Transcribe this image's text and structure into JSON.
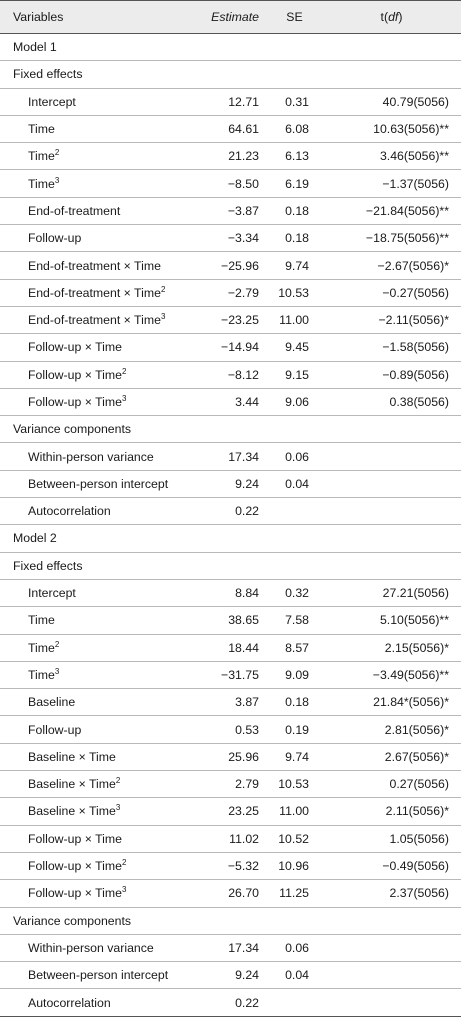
{
  "header": {
    "variables": "Variables",
    "estimate": "Estimate",
    "se": "SE",
    "t_prefix": "t(",
    "t_df": "df",
    "t_suffix": ")"
  },
  "model1": {
    "title": "Model 1",
    "fixed_title": "Fixed effects",
    "fixed": [
      {
        "label": "Intercept",
        "sup": "",
        "estimate": "12.71",
        "se": "0.31",
        "t": "40.79(5056)"
      },
      {
        "label": "Time",
        "sup": "",
        "estimate": "64.61",
        "se": "6.08",
        "t": "10.63(5056)**"
      },
      {
        "label": "Time",
        "sup": "2",
        "estimate": "21.23",
        "se": "6.13",
        "t": "3.46(5056)**"
      },
      {
        "label": "Time",
        "sup": "3",
        "estimate": "−8.50",
        "se": "6.19",
        "t": "−1.37(5056)"
      },
      {
        "label": "End-of-treatment",
        "sup": "",
        "estimate": "−3.87",
        "se": "0.18",
        "t": "−21.84(5056)**"
      },
      {
        "label": "Follow-up",
        "sup": "",
        "estimate": "−3.34",
        "se": "0.18",
        "t": "−18.75(5056)**"
      },
      {
        "label": "End-of-treatment × Time",
        "sup": "",
        "estimate": "−25.96",
        "se": "9.74",
        "t": "−2.67(5056)*"
      },
      {
        "label": "End-of-treatment × Time",
        "sup": "2",
        "estimate": "−2.79",
        "se": "10.53",
        "t": "−0.27(5056)"
      },
      {
        "label": "End-of-treatment × Time",
        "sup": "3",
        "estimate": "−23.25",
        "se": "11.00",
        "t": "−2.11(5056)*"
      },
      {
        "label": "Follow-up × Time",
        "sup": "",
        "estimate": "−14.94",
        "se": "9.45",
        "t": "−1.58(5056)"
      },
      {
        "label": "Follow-up × Time",
        "sup": "2",
        "estimate": "−8.12",
        "se": "9.15",
        "t": "−0.89(5056)"
      },
      {
        "label": "Follow-up × Time",
        "sup": "3",
        "estimate": "3.44",
        "se": "9.06",
        "t": "0.38(5056)"
      }
    ],
    "variance_title": "Variance components",
    "variance": [
      {
        "label": "Within-person variance",
        "estimate": "17.34",
        "se": "0.06"
      },
      {
        "label": "Between-person intercept",
        "estimate": "9.24",
        "se": "0.04"
      },
      {
        "label": "Autocorrelation",
        "estimate": "0.22",
        "se": ""
      }
    ]
  },
  "model2": {
    "title": "Model 2",
    "fixed_title": "Fixed effects",
    "fixed": [
      {
        "label": "Intercept",
        "sup": "",
        "estimate": "8.84",
        "se": "0.32",
        "t": "27.21(5056)"
      },
      {
        "label": "Time",
        "sup": "",
        "estimate": "38.65",
        "se": "7.58",
        "t": "5.10(5056)**"
      },
      {
        "label": "Time",
        "sup": "2",
        "estimate": "18.44",
        "se": "8.57",
        "t": "2.15(5056)*"
      },
      {
        "label": "Time",
        "sup": "3",
        "estimate": "−31.75",
        "se": "9.09",
        "t": "−3.49(5056)**"
      },
      {
        "label": "Baseline",
        "sup": "",
        "estimate": "3.87",
        "se": "0.18",
        "t": "21.84*(5056)*"
      },
      {
        "label": "Follow-up",
        "sup": "",
        "estimate": "0.53",
        "se": "0.19",
        "t": "2.81(5056)*"
      },
      {
        "label": "Baseline × Time",
        "sup": "",
        "estimate": "25.96",
        "se": "9.74",
        "t": "2.67(5056)*"
      },
      {
        "label": "Baseline × Time",
        "sup": "2",
        "estimate": "2.79",
        "se": "10.53",
        "t": "0.27(5056)"
      },
      {
        "label": "Baseline × Time",
        "sup": "3",
        "estimate": "23.25",
        "se": "11.00",
        "t": "2.11(5056)*"
      },
      {
        "label": "Follow-up × Time",
        "sup": "",
        "estimate": "11.02",
        "se": "10.52",
        "t": "1.05(5056)"
      },
      {
        "label": "Follow-up × Time",
        "sup": "2",
        "estimate": "−5.32",
        "se": "10.96",
        "t": "−0.49(5056)"
      },
      {
        "label": "Follow-up × Time",
        "sup": "3",
        "estimate": "26.70",
        "se": "11.25",
        "t": "2.37(5056)"
      }
    ],
    "variance_title": "Variance components",
    "variance": [
      {
        "label": "Within-person variance",
        "estimate": "17.34",
        "se": "0.06"
      },
      {
        "label": "Between-person intercept",
        "estimate": "9.24",
        "se": "0.04"
      },
      {
        "label": "Autocorrelation",
        "estimate": "0.22",
        "se": ""
      }
    ]
  }
}
